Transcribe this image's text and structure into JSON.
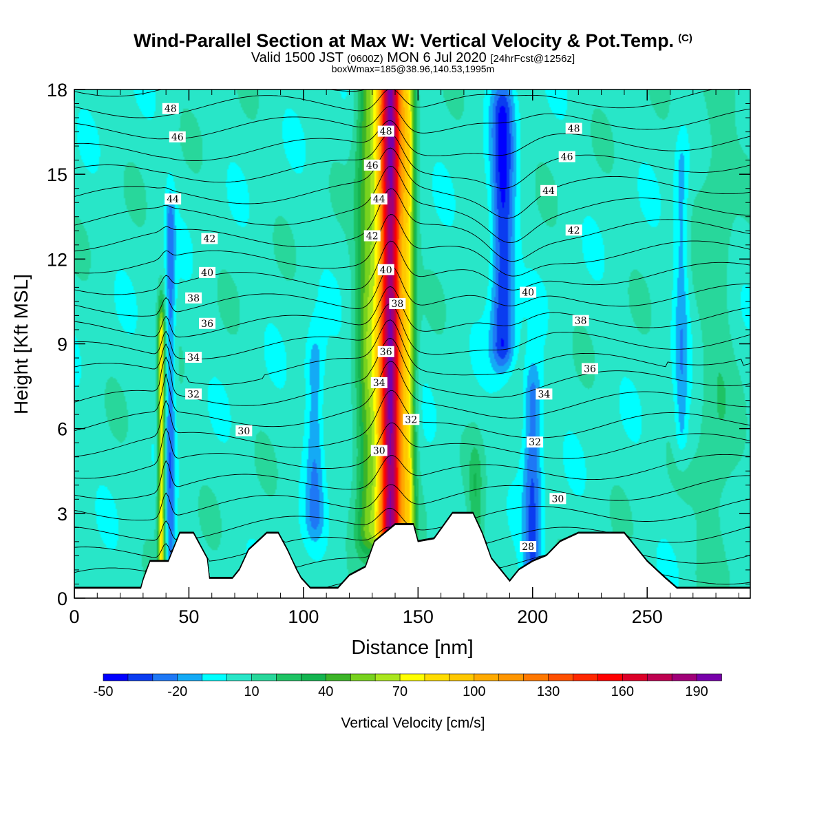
{
  "header": {
    "title": "Wind-Parallel Section at Max W: Vertical Velocity & Pot.Temp.",
    "copyright": "(C)",
    "valid_prefix": "Valid 1500 JST",
    "utc": "(0600Z)",
    "valid_date": "MON 6 Jul 2020",
    "forecast": "[24hrFcst@1256z]",
    "boxwmax": "boxWmax=185@38.96,140.53,1995m"
  },
  "chart_data": {
    "type": "heatmap",
    "xlabel": "Distance [nm]",
    "ylabel": "Height [Kft MSL]",
    "xlim": [
      0,
      295
    ],
    "ylim": [
      0,
      18
    ],
    "xticks": [
      0,
      50,
      100,
      150,
      200,
      250
    ],
    "yticks": [
      0,
      3,
      6,
      9,
      12,
      15,
      18
    ],
    "colorbar": {
      "label": "Vertical Velocity [cm/s]",
      "tick_labels": [
        "-50",
        "-20",
        "10",
        "40",
        "70",
        "100",
        "130",
        "160",
        "190"
      ],
      "tick_values": [
        -50,
        -20,
        10,
        40,
        70,
        100,
        130,
        160,
        190
      ],
      "levels": [
        -50,
        -40,
        -30,
        -20,
        -10,
        0,
        10,
        20,
        30,
        40,
        50,
        60,
        70,
        80,
        90,
        100,
        110,
        120,
        130,
        140,
        150,
        160,
        170,
        180,
        190,
        200
      ],
      "colors": [
        "#0000ff",
        "#0a3cf0",
        "#1e78f5",
        "#14aaf5",
        "#00ffff",
        "#28e6c8",
        "#28d79b",
        "#1ec364",
        "#14b450",
        "#3cb428",
        "#78d21e",
        "#aae61e",
        "#ffff00",
        "#ffdc00",
        "#ffc800",
        "#ffaa00",
        "#ff9600",
        "#ff7800",
        "#ff5000",
        "#ff2800",
        "#ff0000",
        "#dc0028",
        "#be0050",
        "#a00078",
        "#7800aa"
      ]
    },
    "background_w": 5,
    "w_features": [
      {
        "x": 138,
        "z_range": [
          2.5,
          18
        ],
        "peak_w": 185,
        "sigma_nm": 5.5
      },
      {
        "x": 128,
        "z_range": [
          2.5,
          18
        ],
        "peak_w": 45,
        "sigma_nm": 5
      },
      {
        "x": 146,
        "z_range": [
          2.5,
          18
        ],
        "peak_w": 55,
        "sigma_nm": 3
      },
      {
        "x": 38,
        "z_range": [
          1,
          9
        ],
        "peak_w": 75,
        "sigma_nm": 1.5
      },
      {
        "x": 42,
        "z_range": [
          1,
          13
        ],
        "peak_w": -30,
        "sigma_nm": 2
      },
      {
        "x": 187,
        "z_range": [
          9,
          17
        ],
        "peak_w": -45,
        "sigma_nm": 5
      },
      {
        "x": 200,
        "z_range": [
          1,
          7
        ],
        "peak_w": -35,
        "sigma_nm": 4
      },
      {
        "x": 105,
        "z_range": [
          3,
          8
        ],
        "peak_w": -25,
        "sigma_nm": 4
      },
      {
        "x": 175,
        "z_range": [
          1,
          4
        ],
        "peak_w": 20,
        "sigma_nm": 3
      },
      {
        "x": 265,
        "z_range": [
          6,
          15
        ],
        "peak_w": -20,
        "sigma_nm": 3
      },
      {
        "x": 280,
        "z_range": [
          1,
          18
        ],
        "peak_w": 12,
        "sigma_nm": 8
      }
    ],
    "isentropes": {
      "levels": [
        28,
        30,
        32,
        34,
        36,
        38,
        40,
        42,
        44,
        46,
        48
      ],
      "labels": [
        {
          "text": "48",
          "x": 42,
          "z": 17.3
        },
        {
          "text": "46",
          "x": 45,
          "z": 16.3
        },
        {
          "text": "44",
          "x": 43,
          "z": 14.1
        },
        {
          "text": "42",
          "x": 59,
          "z": 12.7
        },
        {
          "text": "40",
          "x": 58,
          "z": 11.5
        },
        {
          "text": "38",
          "x": 52,
          "z": 10.6
        },
        {
          "text": "36",
          "x": 58,
          "z": 9.7
        },
        {
          "text": "34",
          "x": 52,
          "z": 8.5
        },
        {
          "text": "32",
          "x": 52,
          "z": 7.2
        },
        {
          "text": "30",
          "x": 74,
          "z": 5.9
        },
        {
          "text": "48",
          "x": 136,
          "z": 16.5
        },
        {
          "text": "46",
          "x": 130,
          "z": 15.3
        },
        {
          "text": "44",
          "x": 133,
          "z": 14.1
        },
        {
          "text": "42",
          "x": 130,
          "z": 12.8
        },
        {
          "text": "40",
          "x": 136,
          "z": 11.6
        },
        {
          "text": "38",
          "x": 141,
          "z": 10.4
        },
        {
          "text": "36",
          "x": 136,
          "z": 8.7
        },
        {
          "text": "34",
          "x": 133,
          "z": 7.6
        },
        {
          "text": "32",
          "x": 147,
          "z": 6.3
        },
        {
          "text": "30",
          "x": 133,
          "z": 5.2
        },
        {
          "text": "48",
          "x": 218,
          "z": 16.6
        },
        {
          "text": "46",
          "x": 215,
          "z": 15.6
        },
        {
          "text": "44",
          "x": 207,
          "z": 14.4
        },
        {
          "text": "42",
          "x": 218,
          "z": 13.0
        },
        {
          "text": "40",
          "x": 198,
          "z": 10.8
        },
        {
          "text": "38",
          "x": 221,
          "z": 9.8
        },
        {
          "text": "36",
          "x": 225,
          "z": 8.1
        },
        {
          "text": "34",
          "x": 205,
          "z": 7.2
        },
        {
          "text": "32",
          "x": 201,
          "z": 5.5
        },
        {
          "text": "30",
          "x": 211,
          "z": 3.5
        },
        {
          "text": "28",
          "x": 198,
          "z": 1.8
        }
      ]
    },
    "terrain_kft": [
      [
        0,
        0.35
      ],
      [
        29,
        0.35
      ],
      [
        30,
        0.65
      ],
      [
        33,
        1.3
      ],
      [
        41,
        1.3
      ],
      [
        46,
        2.3
      ],
      [
        52,
        2.3
      ],
      [
        58,
        1.4
      ],
      [
        59,
        0.7
      ],
      [
        69,
        0.7
      ],
      [
        72,
        1.0
      ],
      [
        76,
        1.7
      ],
      [
        80,
        2.0
      ],
      [
        84,
        2.3
      ],
      [
        89,
        2.3
      ],
      [
        93,
        1.7
      ],
      [
        97,
        1.0
      ],
      [
        99,
        0.7
      ],
      [
        103,
        0.35
      ],
      [
        115,
        0.35
      ],
      [
        120,
        0.8
      ],
      [
        127,
        1.1
      ],
      [
        131,
        2.0
      ],
      [
        140,
        2.6
      ],
      [
        148,
        2.6
      ],
      [
        150,
        2.0
      ],
      [
        157,
        2.1
      ],
      [
        165,
        3.0
      ],
      [
        174,
        3.0
      ],
      [
        178,
        2.3
      ],
      [
        182,
        1.4
      ],
      [
        190,
        0.6
      ],
      [
        194,
        1.0
      ],
      [
        200,
        1.3
      ],
      [
        206,
        1.5
      ],
      [
        212,
        2.0
      ],
      [
        220,
        2.3
      ],
      [
        230,
        2.3
      ],
      [
        240,
        2.3
      ],
      [
        250,
        1.3
      ],
      [
        258,
        0.7
      ],
      [
        263,
        0.35
      ],
      [
        295,
        0.35
      ]
    ]
  }
}
